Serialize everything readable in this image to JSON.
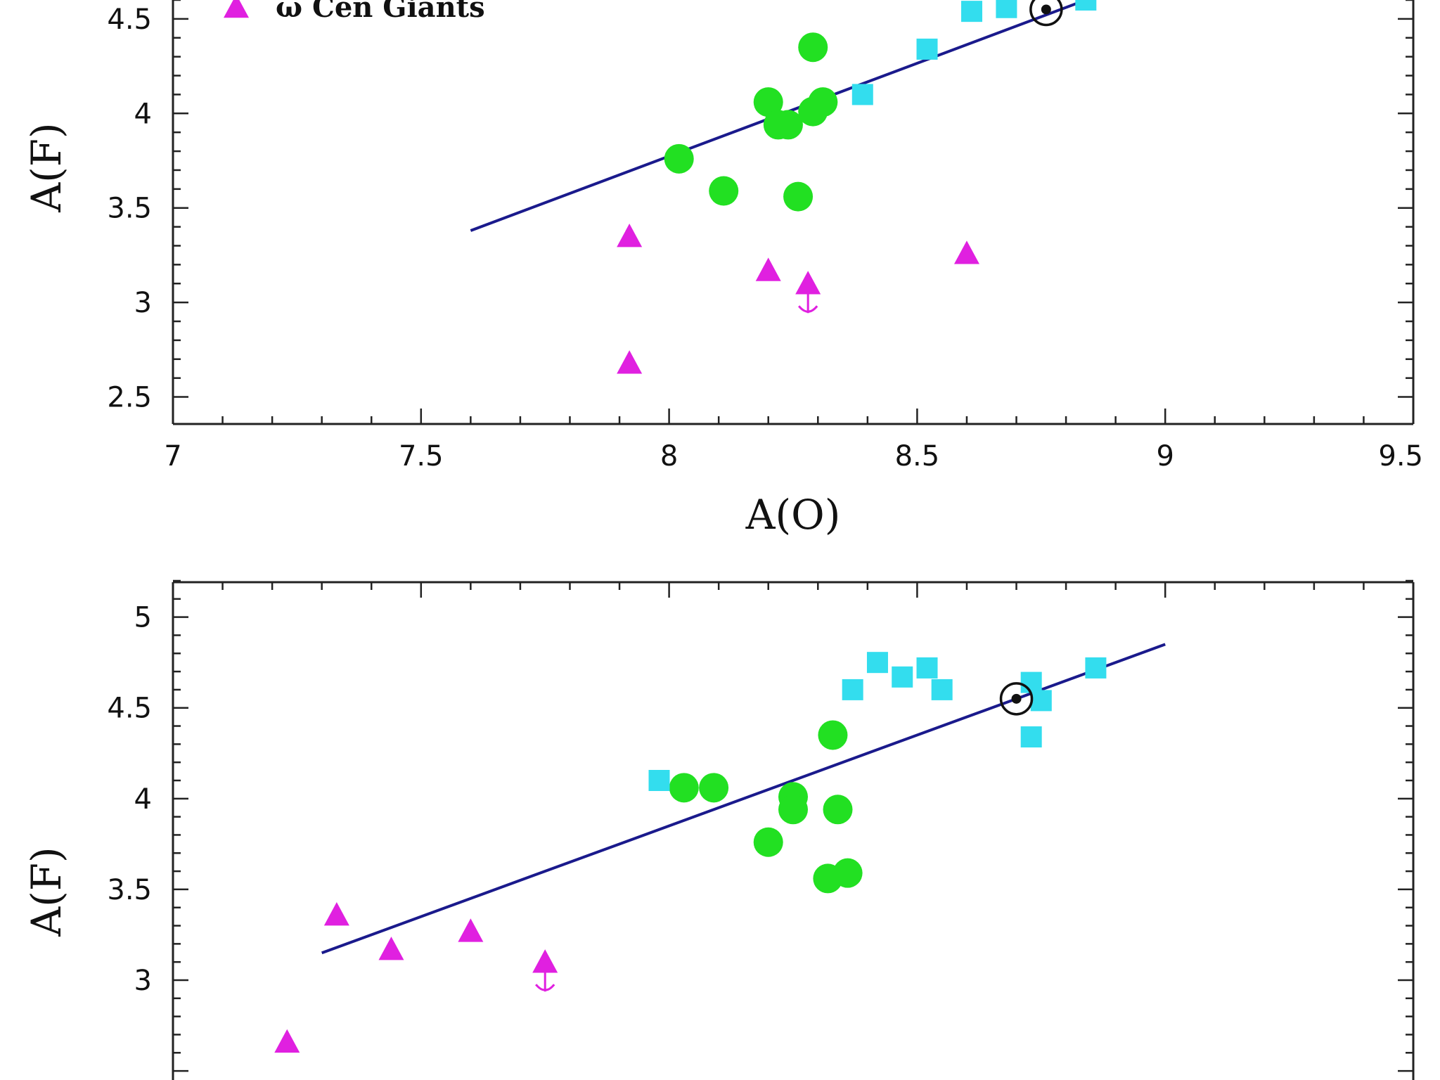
{
  "chart_data": [
    {
      "type": "scatter",
      "title": "",
      "xlabel": "A(O)",
      "ylabel": "A(F)",
      "xlim": [
        7,
        9.5
      ],
      "ylim": [
        2.45,
        4.6
      ],
      "xticks": [
        "7",
        "7.5",
        "8",
        "8.5",
        "9",
        "9.5"
      ],
      "yticks": [
        "2.5",
        "3",
        "3.5",
        "4",
        "4.5"
      ],
      "legend": {
        "placement": "top-left",
        "entries": [
          "ω Cen Giants"
        ]
      },
      "series": [
        {
          "name": "ω Cen Giants",
          "marker": "triangle",
          "color": "#e020e0",
          "points": [
            [
              7.92,
              3.35
            ],
            [
              7.92,
              2.68
            ],
            [
              8.2,
              3.17
            ],
            [
              8.28,
              3.1
            ],
            [
              8.6,
              3.26
            ]
          ],
          "upper_limits": [
            [
              8.28,
              3.1
            ]
          ]
        },
        {
          "marker": "circle",
          "color": "#22e022",
          "points": [
            [
              8.02,
              3.76
            ],
            [
              8.11,
              3.59
            ],
            [
              8.2,
              4.06
            ],
            [
              8.22,
              3.94
            ],
            [
              8.24,
              3.94
            ],
            [
              8.26,
              3.56
            ],
            [
              8.29,
              4.35
            ],
            [
              8.29,
              4.01
            ],
            [
              8.31,
              4.06
            ]
          ]
        },
        {
          "marker": "square",
          "color": "#33ddee",
          "points": [
            [
              8.39,
              4.1
            ],
            [
              8.52,
              4.34
            ],
            [
              8.61,
              4.54
            ],
            [
              8.68,
              4.56
            ],
            [
              8.84,
              4.6
            ]
          ]
        }
      ],
      "solar": {
        "x": 8.76,
        "y": 4.55
      },
      "fit_line": {
        "color": "#1a1a8c",
        "x": [
          7.6,
          8.84
        ],
        "y": [
          3.38,
          4.6
        ]
      }
    },
    {
      "type": "scatter",
      "title": "",
      "xlabel": "",
      "ylabel": "A(F)",
      "xlim": [
        7,
        9.5
      ],
      "ylim": [
        2.45,
        5.2
      ],
      "xticks": [],
      "yticks": [
        "3",
        "3.5",
        "4",
        "4.5",
        "5"
      ],
      "series": [
        {
          "marker": "triangle",
          "color": "#e020e0",
          "points": [
            [
              7.23,
              2.66
            ],
            [
              7.33,
              3.36
            ],
            [
              7.44,
              3.17
            ],
            [
              7.6,
              3.27
            ],
            [
              7.75,
              3.1
            ]
          ],
          "upper_limits": [
            [
              7.75,
              3.1
            ]
          ]
        },
        {
          "marker": "circle",
          "color": "#22e022",
          "points": [
            [
              8.03,
              4.06
            ],
            [
              8.09,
              4.06
            ],
            [
              8.2,
              3.76
            ],
            [
              8.25,
              4.01
            ],
            [
              8.25,
              3.94
            ],
            [
              8.32,
              3.56
            ],
            [
              8.33,
              4.35
            ],
            [
              8.34,
              3.94
            ],
            [
              8.36,
              3.59
            ]
          ]
        },
        {
          "marker": "square",
          "color": "#33ddee",
          "points": [
            [
              7.98,
              4.1
            ],
            [
              8.37,
              4.6
            ],
            [
              8.42,
              4.75
            ],
            [
              8.47,
              4.67
            ],
            [
              8.52,
              4.72
            ],
            [
              8.55,
              4.6
            ],
            [
              8.73,
              4.64
            ],
            [
              8.73,
              4.34
            ],
            [
              8.75,
              4.54
            ],
            [
              8.86,
              4.72
            ]
          ]
        }
      ],
      "solar": {
        "x": 8.7,
        "y": 4.55
      },
      "fit_line": {
        "color": "#1a1a8c",
        "x": [
          7.3,
          9.0
        ],
        "y": [
          3.15,
          4.85
        ]
      }
    }
  ]
}
